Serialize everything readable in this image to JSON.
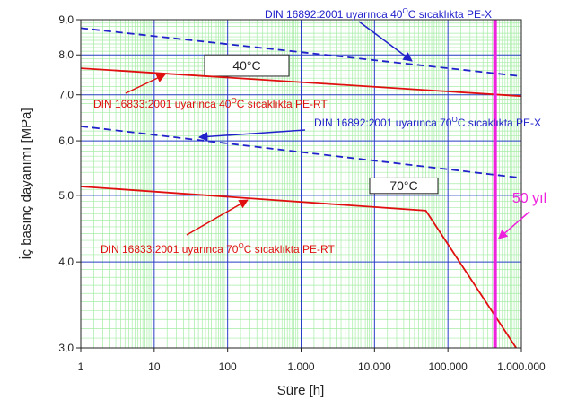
{
  "chart_data": {
    "type": "line",
    "xlabel": "Süre [h]",
    "ylabel": "İç basınç dayanımı [MPa]",
    "xscale": "log",
    "yscale": "log",
    "xlim": [
      1,
      1000000
    ],
    "ylim": [
      3.0,
      9.0
    ],
    "x_ticks": [
      {
        "v": 1,
        "label": "1"
      },
      {
        "v": 10,
        "label": "10"
      },
      {
        "v": 100,
        "label": "100"
      },
      {
        "v": 1000,
        "label": "1.000"
      },
      {
        "v": 10000,
        "label": "10.000"
      },
      {
        "v": 100000,
        "label": "100.000"
      },
      {
        "v": 1000000,
        "label": "1.000.000"
      }
    ],
    "y_ticks": [
      {
        "v": 3.0,
        "label": "3,0"
      },
      {
        "v": 4.0,
        "label": "4,0"
      },
      {
        "v": 5.0,
        "label": "5,0"
      },
      {
        "v": 6.0,
        "label": "6,0"
      },
      {
        "v": 7.0,
        "label": "7,0"
      },
      {
        "v": 8.0,
        "label": "8,0"
      },
      {
        "v": 9.0,
        "label": "9,0"
      }
    ],
    "grid": true,
    "series": [
      {
        "name": "DIN 16892:2001 uyarınca 40°C sıcaklıkta PE-X",
        "color": "#2222cc",
        "dash": "dashed",
        "x": [
          1,
          1000000
        ],
        "y": [
          8.75,
          7.45
        ]
      },
      {
        "name": "DIN 16833:2001 uyarınca 40°C sıcaklıkta PE-RT",
        "color": "#e01010",
        "dash": "solid",
        "x": [
          1,
          1000000
        ],
        "y": [
          7.65,
          6.97
        ]
      },
      {
        "name": "DIN 16892:2001 uyarınca 70°C sıcaklıkta PE-X",
        "color": "#2222cc",
        "dash": "dashed",
        "x": [
          1,
          1000000
        ],
        "y": [
          6.3,
          5.3
        ]
      },
      {
        "name": "DIN 16833:2001 uyarınca 70°C sıcaklıkta PE-RT",
        "color": "#e01010",
        "dash": "solid",
        "x": [
          1,
          50000,
          850000
        ],
        "y": [
          5.15,
          4.75,
          3.0
        ]
      }
    ],
    "reference_line": {
      "x": 438000,
      "label": "50 yıl",
      "color": "#ee22dd"
    },
    "temperature_labels": [
      {
        "text": "40°C",
        "x": 40000000
      },
      {
        "text": "70°C",
        "x": 90000000
      }
    ],
    "annotations": [
      {
        "pre": "DIN 16892:2001 uyarınca 40",
        "sup": "O",
        "post": "C sıcaklıkta PE-X",
        "color": "#2222cc"
      },
      {
        "pre": "DIN 16833:2001 uyarınca 40",
        "sup": "O",
        "post": "C sıcaklıkta PE-RT",
        "color": "#e01010"
      },
      {
        "pre": "DIN 16892:2001 uyarınca 70",
        "sup": "O",
        "post": "C sıcaklıkta PE-X",
        "color": "#2222cc"
      },
      {
        "pre": "DIN 16833:2001 uyarınca 70",
        "sup": "O",
        "post": "C sıcaklıkta PE-RT",
        "color": "#e01010"
      }
    ]
  }
}
